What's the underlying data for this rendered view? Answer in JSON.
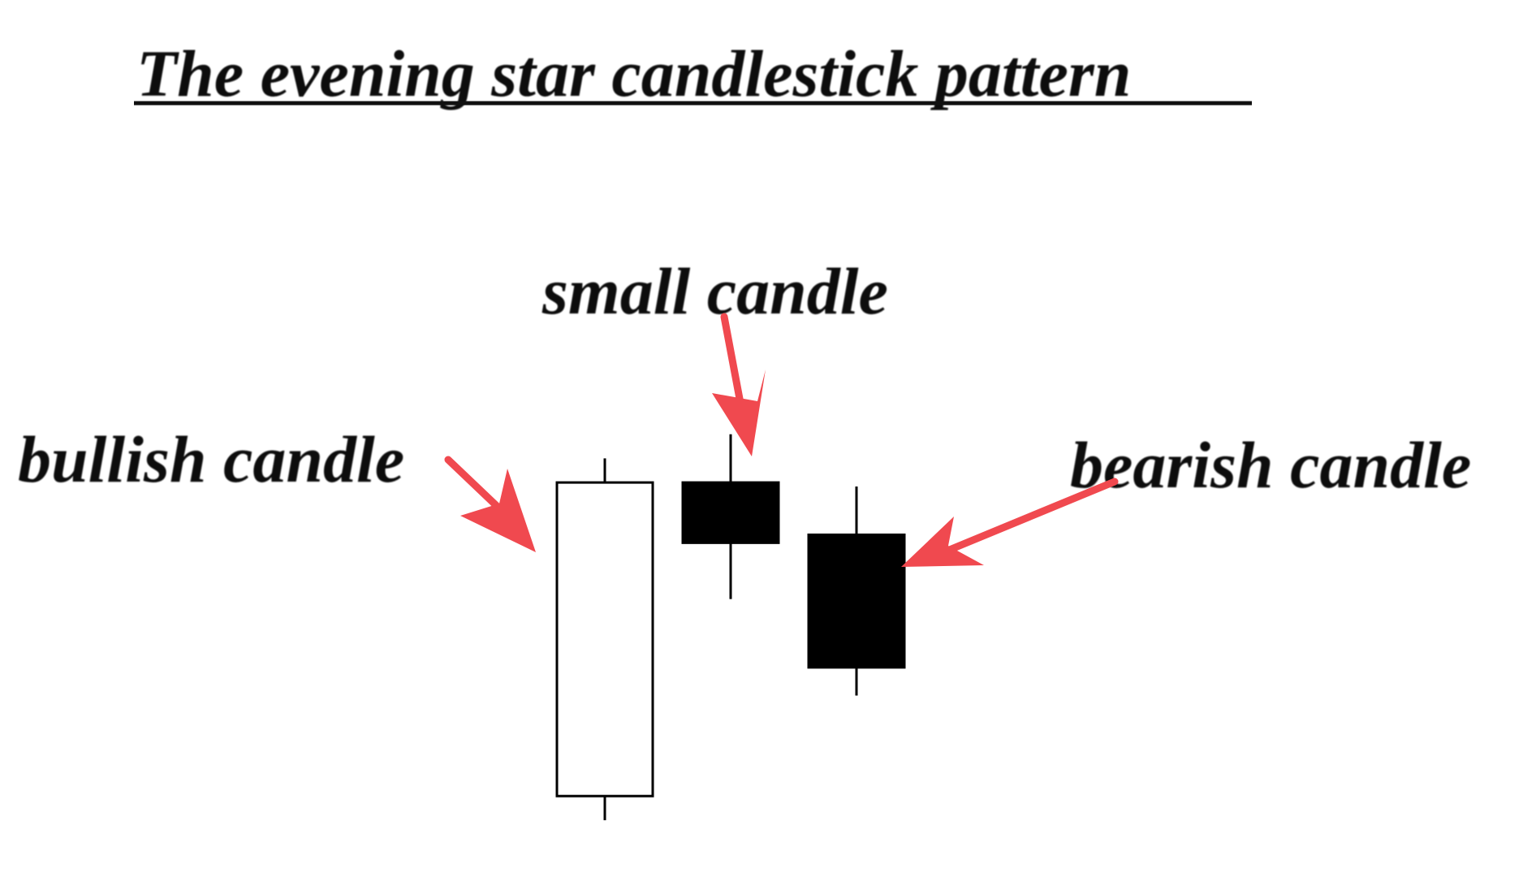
{
  "title": "The evening star candlestick pattern",
  "labels": {
    "bullish": "bullish candle",
    "small": "small candle",
    "bearish": "bearish candle"
  },
  "candles": [
    {
      "id": "bullish",
      "type": "bullish",
      "open": 2,
      "close": 41,
      "high": 44,
      "low": -1
    },
    {
      "id": "small",
      "type": "bearish",
      "open": 41,
      "close": 33.5,
      "high": 47,
      "low": 26.5
    },
    {
      "id": "bearish",
      "type": "bearish",
      "open": 34.5,
      "close": 18,
      "high": 40.5,
      "low": 14.5
    }
  ],
  "colors": {
    "arrow": "#f0494f",
    "text": "#111111",
    "bullish_body": "#ffffff",
    "bearish_body": "#000000",
    "outline": "#000000"
  }
}
